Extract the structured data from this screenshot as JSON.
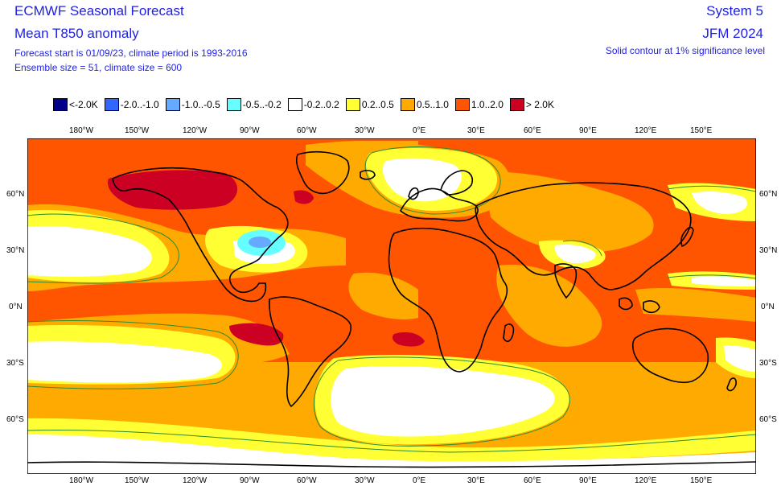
{
  "header": {
    "title": "ECMWF Seasonal Forecast",
    "subtitle": "Mean T850 anomaly",
    "line3": "Forecast start is 01/09/23, climate period is 1993-2016",
    "line4": "Ensemble size = 51, climate size = 600",
    "system": "System 5",
    "period": "JFM 2024",
    "note": "Solid contour at 1% significance level"
  },
  "legend": [
    {
      "label": "<-2.0K",
      "color": "#00008b"
    },
    {
      "label": "-2.0..-1.0",
      "color": "#3366ff"
    },
    {
      "label": "-1.0..-0.5",
      "color": "#66aaff"
    },
    {
      "label": "-0.5..-0.2",
      "color": "#66ffff"
    },
    {
      "label": "-0.2..0.2",
      "color": "#ffffff"
    },
    {
      "label": "0.2..0.5",
      "color": "#ffff33"
    },
    {
      "label": "0.5..1.0",
      "color": "#ffaa00"
    },
    {
      "label": "1.0..2.0",
      "color": "#ff5500"
    },
    {
      "label": "> 2.0K",
      "color": "#cc0022"
    }
  ],
  "axes": {
    "lon_top": [
      "180°W",
      "150°W",
      "120°W",
      "90°W",
      "60°W",
      "30°W",
      "0°E",
      "30°E",
      "60°E",
      "90°E",
      "120°E",
      "150°E"
    ],
    "lon_bottom": [
      "180°W",
      "150°W",
      "120°W",
      "90°W",
      "60°W",
      "30°W",
      "0°E",
      "30°E",
      "60°E",
      "90°E",
      "120°E",
      "150°E"
    ],
    "lat_left": [
      "60°N",
      "30°N",
      "0°N",
      "30°S",
      "60°S"
    ],
    "lat_right": [
      "60°N",
      "30°N",
      "0°N",
      "30°S",
      "60°S"
    ]
  },
  "colors": {
    "frame": "#000000",
    "coast": "#000000",
    "sig_contour": "#2e8b2e"
  }
}
